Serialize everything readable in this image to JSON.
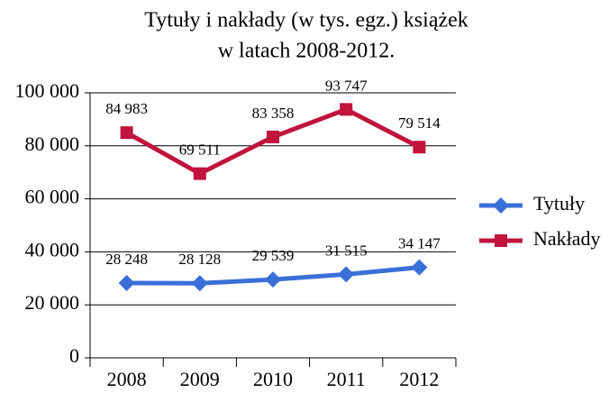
{
  "chart_data": {
    "type": "line",
    "title": [
      "Tytuły i nakłady (w tys. egz.) książek",
      "w latach 2008-2012."
    ],
    "categories": [
      "2008",
      "2009",
      "2010",
      "2011",
      "2012"
    ],
    "series": [
      {
        "name": "Tytuły",
        "color": "#3a6fd8",
        "marker": "diamond",
        "values": [
          28248,
          28128,
          29539,
          31515,
          34147
        ],
        "value_labels": [
          "28 248",
          "28 128",
          "29 539",
          "31 515",
          "34 147"
        ]
      },
      {
        "name": "Nakłady",
        "color": "#c0143c",
        "marker": "square",
        "values": [
          84983,
          69511,
          83358,
          93747,
          79514
        ],
        "value_labels": [
          "84 983",
          "69 511",
          "83 358",
          "93 747",
          "79 514"
        ]
      }
    ],
    "ylim": [
      0,
      100000
    ],
    "yticks": [
      0,
      {
        "value": 20000,
        "label": "20 000"
      },
      {
        "value": 40000,
        "label": "40 000"
      },
      {
        "value": 60000,
        "label": "60 000"
      },
      {
        "value": 80000,
        "label": "80 000"
      },
      {
        "value": 100000,
        "label": "100 000"
      }
    ],
    "grid": true,
    "legend": "right"
  }
}
